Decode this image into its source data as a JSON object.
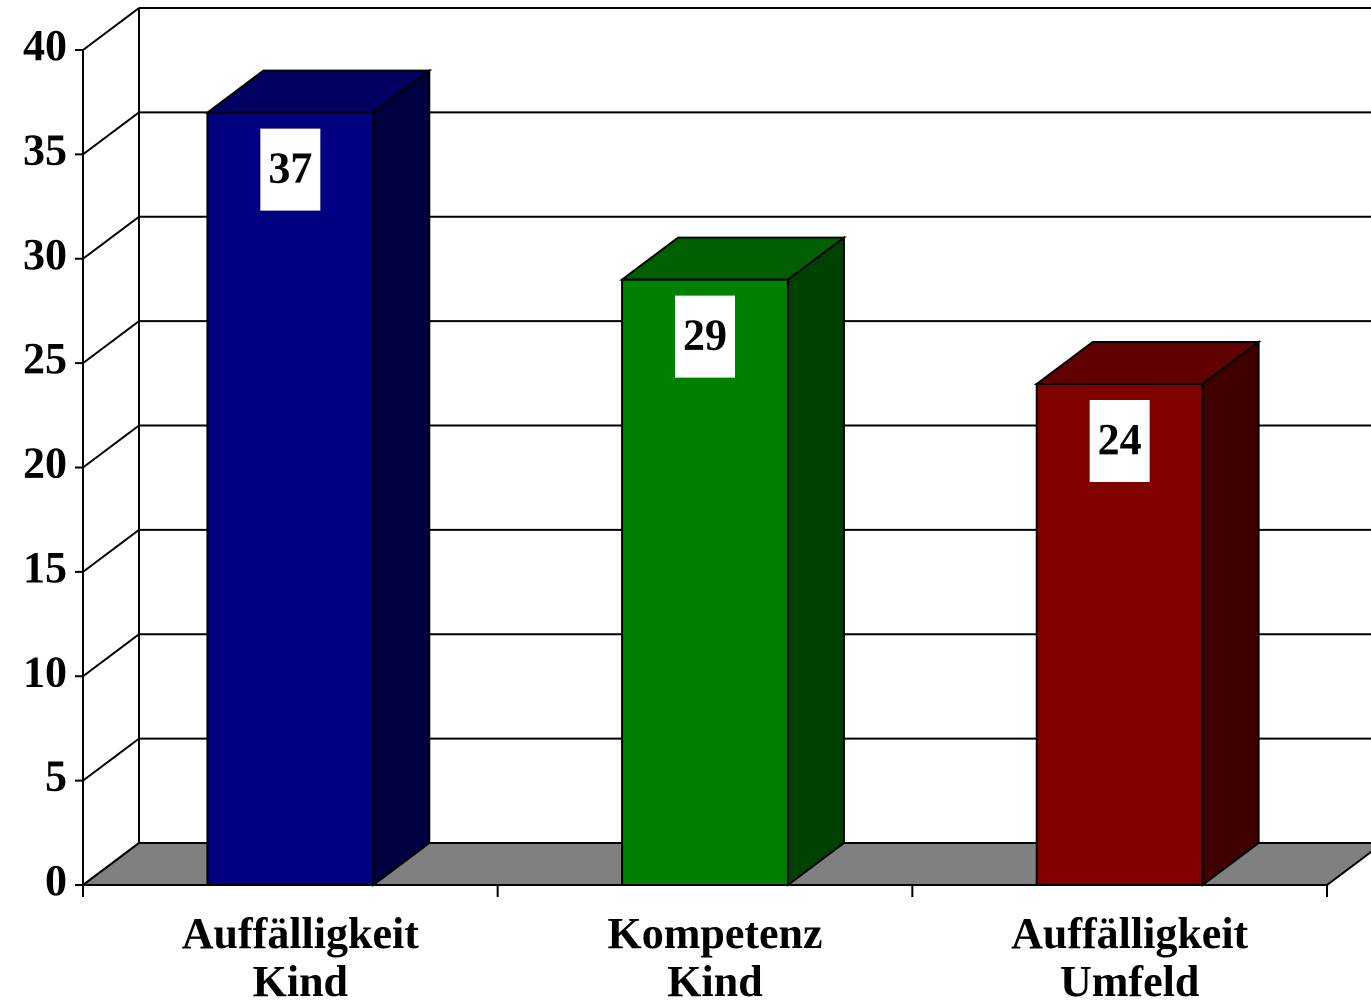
{
  "chart_data": {
    "type": "bar3d",
    "categories": [
      [
        "Auffälligkeit",
        "Kind"
      ],
      [
        "Kompetenz",
        "Kind"
      ],
      [
        "Auffälligkeit",
        "Umfeld"
      ]
    ],
    "values": [
      37,
      29,
      24
    ],
    "colors": [
      "#000080",
      "#008000",
      "#800000"
    ],
    "ylim": [
      0,
      40
    ],
    "yticks": [
      0,
      5,
      10,
      15,
      20,
      25,
      30,
      35,
      40
    ],
    "grid": true
  }
}
